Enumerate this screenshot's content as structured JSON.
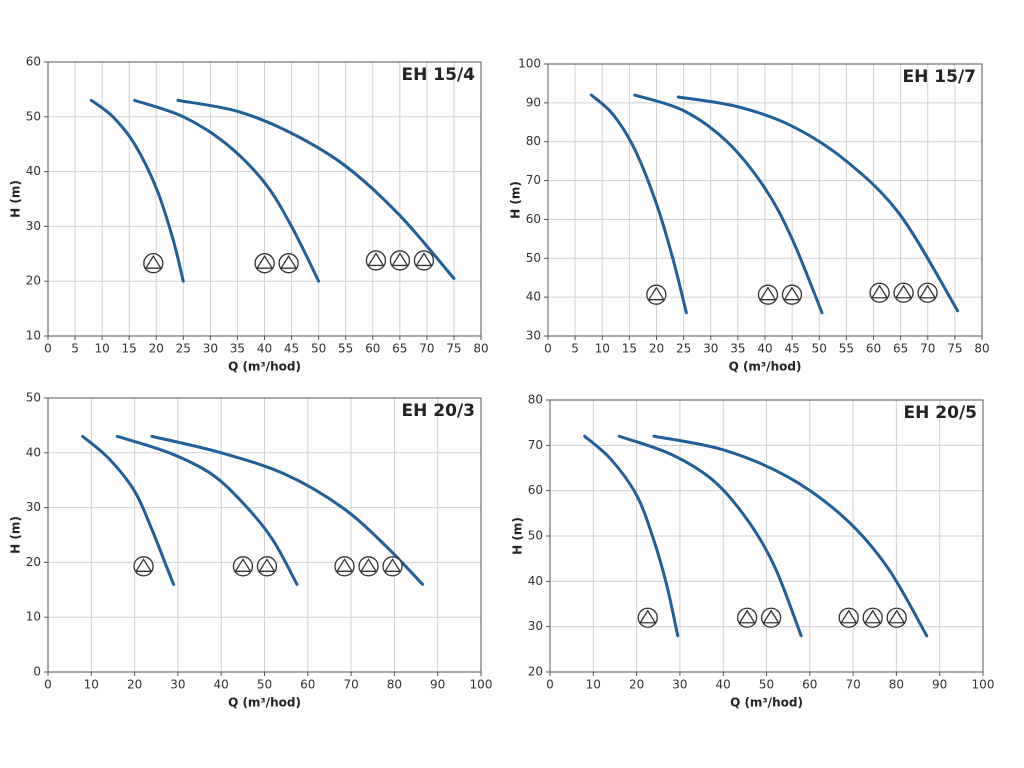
{
  "chart_data": [
    {
      "type": "line",
      "title": "EH 15/4",
      "xlabel": "Q (m³/hod)",
      "ylabel": "H (m)",
      "xlim": [
        0,
        80
      ],
      "xticks": [
        0,
        5,
        10,
        15,
        20,
        25,
        30,
        35,
        40,
        45,
        50,
        55,
        60,
        65,
        70,
        75,
        80
      ],
      "ylim": [
        10,
        60
      ],
      "yticks": [
        10,
        20,
        30,
        40,
        50,
        60
      ],
      "grid": true,
      "series": [
        {
          "color": "#1f5f9a",
          "x": [
            8,
            12,
            16,
            20,
            23,
            25
          ],
          "values": [
            53,
            50,
            45,
            37,
            28,
            20
          ]
        },
        {
          "color": "#1f5f9a",
          "x": [
            16,
            25,
            33,
            40,
            45,
            50
          ],
          "values": [
            53,
            50,
            45,
            38,
            30,
            20
          ]
        },
        {
          "color": "#1f5f9a",
          "x": [
            24,
            35,
            45,
            55,
            65,
            75
          ],
          "values": [
            53,
            51,
            47,
            41,
            32,
            20.5
          ]
        }
      ]
    },
    {
      "type": "line",
      "title": "EH 15/7",
      "xlabel": "Q (m³/hod)",
      "ylabel": "H (m)",
      "xlim": [
        0,
        80
      ],
      "xticks": [
        0,
        5,
        10,
        15,
        20,
        25,
        30,
        35,
        40,
        45,
        50,
        55,
        60,
        65,
        70,
        75,
        80
      ],
      "ylim": [
        30,
        100
      ],
      "yticks": [
        30,
        40,
        50,
        60,
        70,
        80,
        90,
        100
      ],
      "grid": true,
      "series": [
        {
          "color": "#1f5f9a",
          "x": [
            8,
            12,
            16,
            20,
            23,
            25.5
          ],
          "values": [
            92,
            87,
            78,
            64,
            50,
            36
          ]
        },
        {
          "color": "#1f5f9a",
          "x": [
            16,
            25,
            33,
            40,
            45,
            50.5
          ],
          "values": [
            92,
            88,
            80,
            68,
            55,
            36
          ]
        },
        {
          "color": "#1f5f9a",
          "x": [
            24,
            35,
            45,
            55,
            65,
            75.5
          ],
          "values": [
            91.5,
            89,
            84,
            75,
            61,
            36.5
          ]
        }
      ]
    },
    {
      "type": "line",
      "title": "EH 20/3",
      "xlabel": "Q (m³/hod)",
      "ylabel": "H (m)",
      "xlim": [
        0,
        100
      ],
      "xticks": [
        0,
        10,
        20,
        30,
        40,
        50,
        60,
        70,
        80,
        90,
        100
      ],
      "ylim": [
        0,
        50
      ],
      "yticks": [
        0,
        10,
        20,
        30,
        40,
        50
      ],
      "grid": true,
      "series": [
        {
          "color": "#1f5f9a",
          "x": [
            8,
            14,
            20,
            24,
            27,
            29
          ],
          "values": [
            43,
            39,
            33,
            26,
            20,
            16
          ]
        },
        {
          "color": "#1f5f9a",
          "x": [
            16,
            28,
            38,
            46,
            52,
            57.5
          ],
          "values": [
            43,
            40,
            36,
            30,
            24,
            16
          ]
        },
        {
          "color": "#1f5f9a",
          "x": [
            24,
            40,
            55,
            68,
            78,
            86.5
          ],
          "values": [
            43,
            40,
            36,
            30,
            23,
            16
          ]
        }
      ]
    },
    {
      "type": "line",
      "title": "EH 20/5",
      "xlabel": "Q (m³/hod)",
      "ylabel": "H (m)",
      "xlim": [
        0,
        100
      ],
      "xticks": [
        0,
        10,
        20,
        30,
        40,
        50,
        60,
        70,
        80,
        90,
        100
      ],
      "ylim": [
        20,
        80
      ],
      "yticks": [
        20,
        30,
        40,
        50,
        60,
        70,
        80
      ],
      "grid": true,
      "series": [
        {
          "color": "#1f5f9a",
          "x": [
            8,
            14,
            20,
            24,
            27,
            29.5
          ],
          "values": [
            72,
            67,
            59,
            49,
            39,
            28
          ]
        },
        {
          "color": "#1f5f9a",
          "x": [
            16,
            28,
            38,
            46,
            52,
            58
          ],
          "values": [
            72,
            68,
            62,
            53,
            43,
            28
          ]
        },
        {
          "color": "#1f5f9a",
          "x": [
            24,
            40,
            55,
            68,
            78,
            87
          ],
          "values": [
            72,
            69,
            63,
            54,
            43,
            28
          ]
        }
      ]
    }
  ]
}
